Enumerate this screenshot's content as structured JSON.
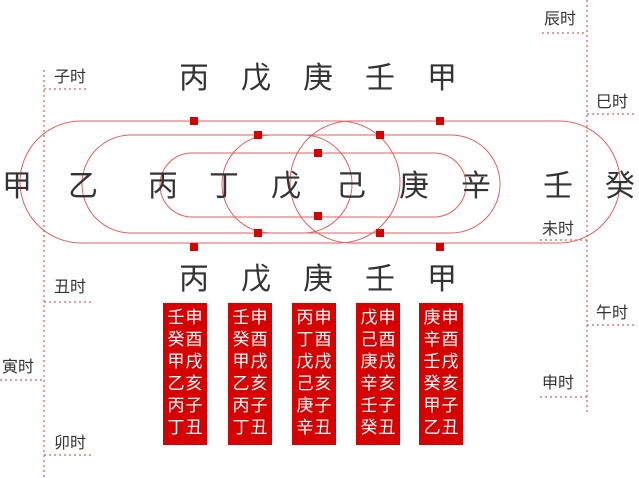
{
  "colors": {
    "accent": "#d60000",
    "line": "#e06060",
    "dotted": "#d08080",
    "text": "#333333",
    "box_text": "#ffffff"
  },
  "time_labels": {
    "zi": "子时",
    "chou": "丑时",
    "yin": "寅时",
    "mao": "卯时",
    "chen": "辰时",
    "si": "巳时",
    "wu": "午时",
    "wei": "未时",
    "shen": "申时"
  },
  "top_row": [
    "丙",
    "戊",
    "庚",
    "壬",
    "甲"
  ],
  "main_row": [
    "甲",
    "乙",
    "丙",
    "丁",
    "戊",
    "己",
    "庚",
    "辛",
    "壬",
    "癸"
  ],
  "bottom_row": [
    "丙",
    "戊",
    "庚",
    "壬",
    "甲"
  ],
  "boxes": [
    {
      "left": [
        "壬",
        "癸",
        "甲",
        "乙",
        "丙",
        "丁"
      ],
      "right": [
        "申",
        "酉",
        "戌",
        "亥",
        "子",
        "丑"
      ]
    },
    {
      "left": [
        "壬",
        "癸",
        "甲",
        "乙",
        "丙",
        "丁"
      ],
      "right": [
        "申",
        "酉",
        "戌",
        "亥",
        "子",
        "丑"
      ]
    },
    {
      "left": [
        "丙",
        "丁",
        "戊",
        "己",
        "庚",
        "辛"
      ],
      "right": [
        "申",
        "酉",
        "戌",
        "亥",
        "子",
        "丑"
      ]
    },
    {
      "left": [
        "戊",
        "己",
        "庚",
        "辛",
        "壬",
        "癸"
      ],
      "right": [
        "申",
        "酉",
        "戌",
        "亥",
        "子",
        "丑"
      ]
    },
    {
      "left": [
        "庚",
        "辛",
        "壬",
        "癸",
        "甲",
        "乙"
      ],
      "right": [
        "申",
        "酉",
        "戌",
        "亥",
        "子",
        "丑"
      ]
    }
  ]
}
